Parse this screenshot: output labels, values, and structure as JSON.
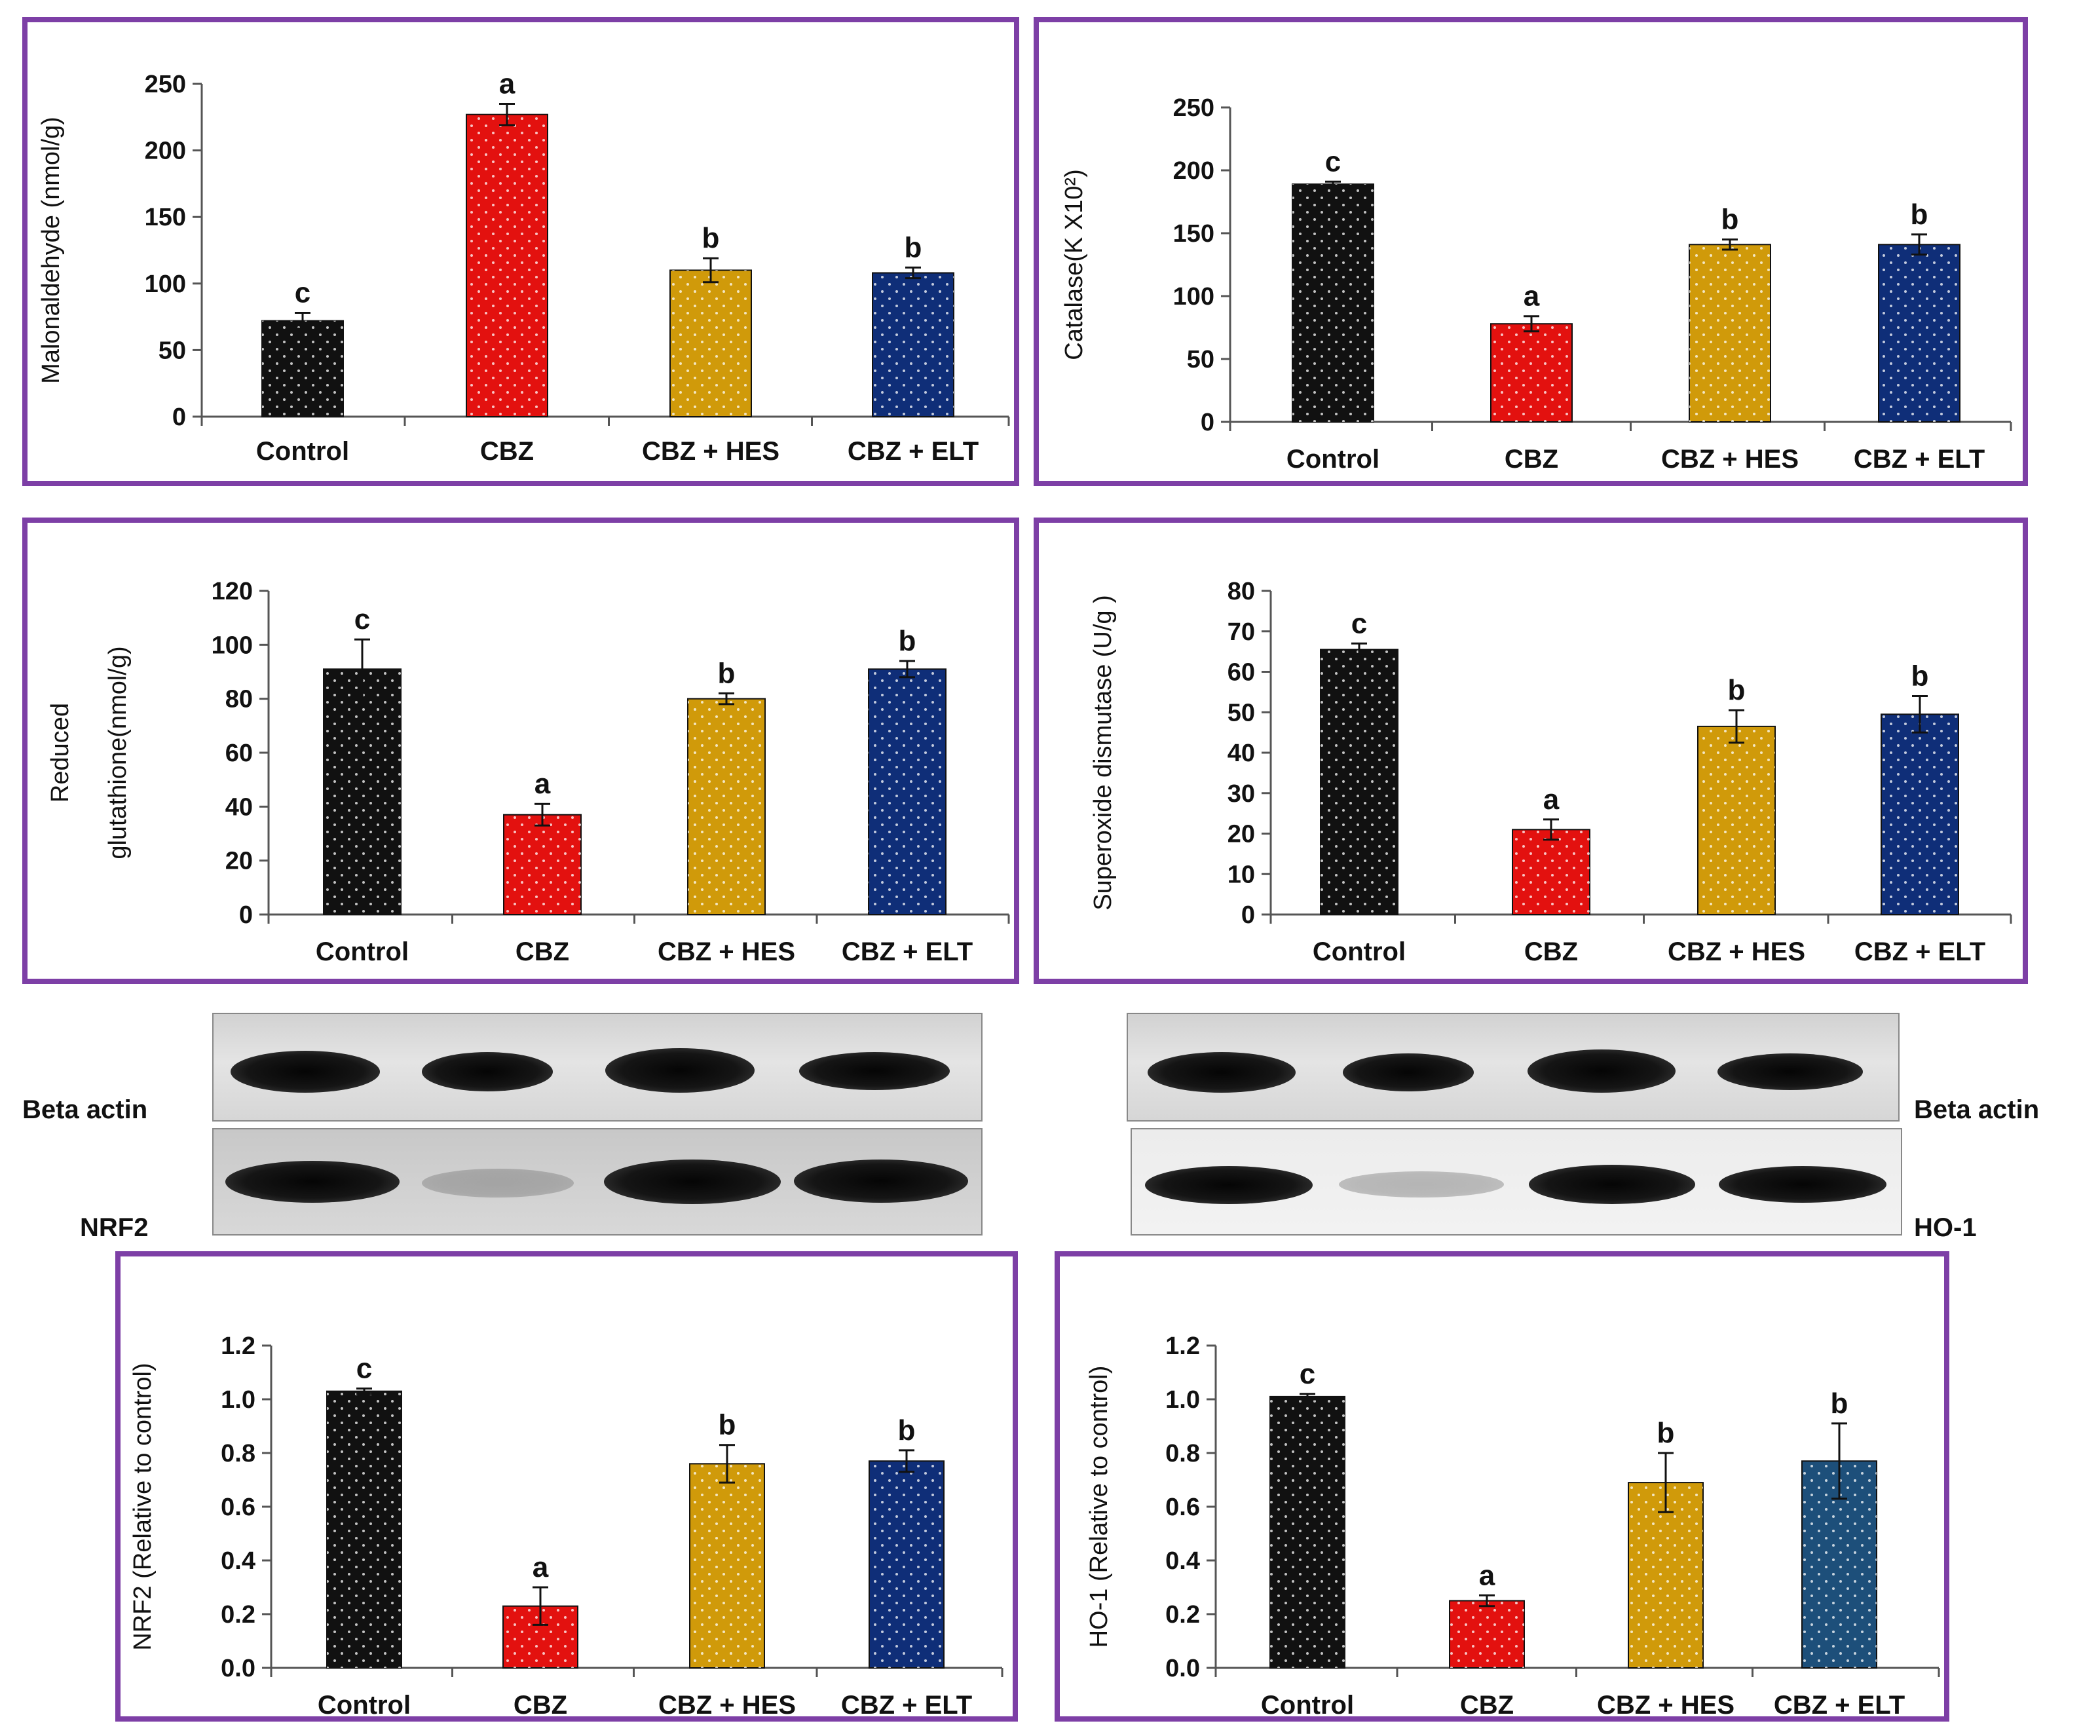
{
  "colors": {
    "frame": "#7d3fa6",
    "bars": [
      "#111111",
      "#e3110f",
      "#d09a0a",
      "#0f2e78"
    ],
    "bars_alt_last": "#1d4f7a"
  },
  "categories": [
    "Control",
    "CBZ",
    "CBZ + HES",
    "CBZ + ELT"
  ],
  "chart_data": [
    {
      "id": "mda",
      "type": "bar",
      "title": "",
      "ylabel": "Malonaldehyde (nmol/g)",
      "categories": [
        "Control",
        "CBZ",
        "CBZ + HES",
        "CBZ + ELT"
      ],
      "values": [
        72,
        227,
        110,
        108
      ],
      "errors": [
        6,
        8,
        9,
        4
      ],
      "letters": [
        "c",
        "a",
        "b",
        "b"
      ],
      "ylim": [
        0,
        250
      ],
      "yticks": [
        "0",
        "50",
        "100",
        "150",
        "200",
        "250"
      ]
    },
    {
      "id": "catalase",
      "type": "bar",
      "title": "",
      "ylabel": "Catalase(K X10²)",
      "categories": [
        "Control",
        "CBZ",
        "CBZ + HES",
        "CBZ + ELT"
      ],
      "values": [
        189,
        78,
        141,
        141
      ],
      "errors": [
        2,
        6,
        4,
        8
      ],
      "letters": [
        "c",
        "a",
        "b",
        "b"
      ],
      "ylim": [
        0,
        250
      ],
      "yticks": [
        "0",
        "50",
        "100",
        "150",
        "200",
        "250"
      ]
    },
    {
      "id": "gsh",
      "type": "bar",
      "title": "",
      "ylabel": "Reduced glutathione(nmol/g)",
      "ylabel_lines": [
        "Reduced",
        "glutathione(nmol/g)"
      ],
      "categories": [
        "Control",
        "CBZ",
        "CBZ + HES",
        "CBZ + ELT"
      ],
      "values": [
        91,
        37,
        80,
        91
      ],
      "errors": [
        11,
        4,
        2,
        3
      ],
      "letters": [
        "c",
        "a",
        "b",
        "b"
      ],
      "ylim": [
        0,
        120
      ],
      "yticks": [
        "0",
        "20",
        "40",
        "60",
        "80",
        "100",
        "120"
      ]
    },
    {
      "id": "sod",
      "type": "bar",
      "title": "",
      "ylabel": "Superoxide dismutase (U/g )",
      "categories": [
        "Control",
        "CBZ",
        "CBZ + HES",
        "CBZ + ELT"
      ],
      "values": [
        65.5,
        21,
        46.5,
        49.5
      ],
      "errors": [
        1.5,
        2.5,
        4,
        4.5
      ],
      "letters": [
        "c",
        "a",
        "b",
        "b"
      ],
      "ylim": [
        0,
        80
      ],
      "yticks": [
        "0",
        "10",
        "20",
        "30",
        "40",
        "50",
        "60",
        "70",
        "80"
      ]
    },
    {
      "id": "nrf2",
      "type": "bar",
      "title": "",
      "ylabel": "NRF2 (Relative to control)",
      "categories": [
        "Control",
        "CBZ",
        "CBZ + HES",
        "CBZ + ELT"
      ],
      "values": [
        1.03,
        0.23,
        0.76,
        0.77
      ],
      "errors": [
        0.01,
        0.07,
        0.07,
        0.04
      ],
      "letters": [
        "c",
        "a",
        "b",
        "b"
      ],
      "ylim": [
        0,
        1.2
      ],
      "yticks": [
        "0.0",
        "0.2",
        "0.4",
        "0.6",
        "0.8",
        "1.0",
        "1.2"
      ]
    },
    {
      "id": "ho1",
      "type": "bar",
      "title": "",
      "ylabel": "HO-1 (Relative to control)",
      "categories": [
        "Control",
        "CBZ",
        "CBZ + HES",
        "CBZ + ELT"
      ],
      "values": [
        1.01,
        0.25,
        0.69,
        0.77
      ],
      "errors": [
        0.01,
        0.02,
        0.11,
        0.14
      ],
      "letters": [
        "c",
        "a",
        "b",
        "b"
      ],
      "ylim": [
        0,
        1.2
      ],
      "yticks": [
        "0.0",
        "0.2",
        "0.4",
        "0.6",
        "0.8",
        "1.0",
        "1.2"
      ]
    }
  ],
  "blots": {
    "left": {
      "top_label": "Beta actin",
      "bottom_label": "NRF2"
    },
    "right": {
      "top_label": "Beta actin",
      "bottom_label": "HO-1"
    }
  }
}
